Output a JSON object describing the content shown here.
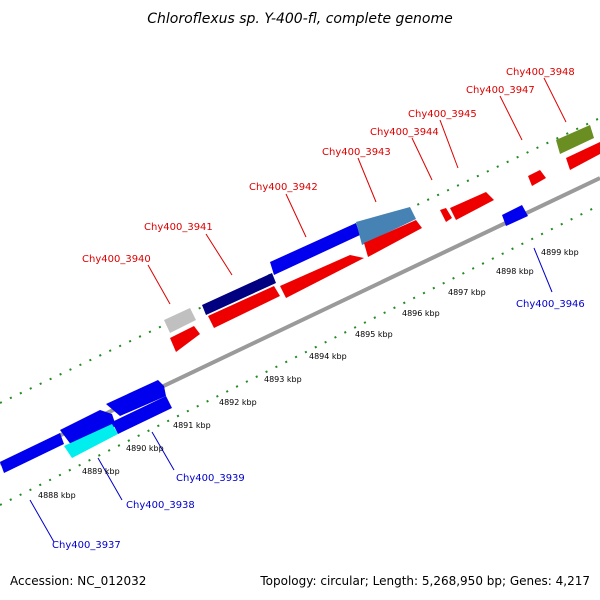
{
  "title": "Chloroflexus sp. Y-400-fl, complete genome",
  "footer": {
    "accession": "Accession: NC_012032",
    "stats": "Topology: circular; Length: 5,268,950 bp; Genes: 4,217"
  },
  "colors": {
    "forward_label": "#dd0000",
    "reverse_label": "#0000cc",
    "backbone": "#999999",
    "tick": "#228b22"
  },
  "kbp_ticks": [
    "4888 kbp",
    "4889 kbp",
    "4890 kbp",
    "4891 kbp",
    "4892 kbp",
    "4893 kbp",
    "4894 kbp",
    "4895 kbp",
    "4896 kbp",
    "4897 kbp",
    "4898 kbp",
    "4899 kbp"
  ],
  "gene_labels": [
    {
      "text": "Chy400_3940",
      "strand": "forward"
    },
    {
      "text": "Chy400_3941",
      "strand": "forward"
    },
    {
      "text": "Chy400_3942",
      "strand": "forward"
    },
    {
      "text": "Chy400_3943",
      "strand": "forward"
    },
    {
      "text": "Chy400_3944",
      "strand": "forward"
    },
    {
      "text": "Chy400_3945",
      "strand": "forward"
    },
    {
      "text": "Chy400_3947",
      "strand": "forward"
    },
    {
      "text": "Chy400_3948",
      "strand": "forward"
    },
    {
      "text": "Chy400_3946",
      "strand": "reverse"
    },
    {
      "text": "Chy400_3939",
      "strand": "reverse"
    },
    {
      "text": "Chy400_3938",
      "strand": "reverse"
    },
    {
      "text": "Chy400_3937",
      "strand": "reverse"
    }
  ]
}
